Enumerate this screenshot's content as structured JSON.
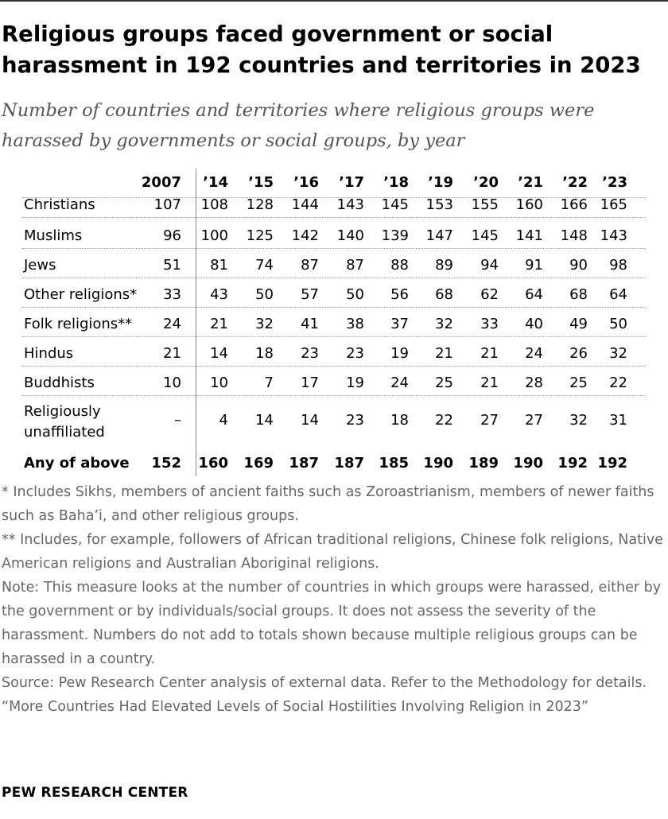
{
  "header": {
    "title": "Religious groups faced government or social harassment in 192 countries and territories in 2023",
    "subtitle": "Number of countries and territories where religious groups were harassed by governments or social groups, by year"
  },
  "chart_data": {
    "type": "table",
    "columns": [
      "2007",
      "’14",
      "’15",
      "’16",
      "’17",
      "’18",
      "’19",
      "’20",
      "’21",
      "’22",
      "’23"
    ],
    "rows": [
      {
        "label": "Christians",
        "values": [
          "107",
          "108",
          "128",
          "144",
          "143",
          "145",
          "153",
          "155",
          "160",
          "166",
          "165"
        ]
      },
      {
        "label": "Muslims",
        "values": [
          "96",
          "100",
          "125",
          "142",
          "140",
          "139",
          "147",
          "145",
          "141",
          "148",
          "143"
        ]
      },
      {
        "label": "Jews",
        "values": [
          "51",
          "81",
          "74",
          "87",
          "87",
          "88",
          "89",
          "94",
          "91",
          "90",
          "98"
        ]
      },
      {
        "label": "Other religions*",
        "values": [
          "33",
          "43",
          "50",
          "57",
          "50",
          "56",
          "68",
          "62",
          "64",
          "68",
          "64"
        ]
      },
      {
        "label": "Folk religions**",
        "values": [
          "24",
          "21",
          "32",
          "41",
          "38",
          "37",
          "32",
          "33",
          "40",
          "49",
          "50"
        ]
      },
      {
        "label": "Hindus",
        "values": [
          "21",
          "14",
          "18",
          "23",
          "23",
          "19",
          "21",
          "21",
          "24",
          "26",
          "32"
        ]
      },
      {
        "label": "Buddhists",
        "values": [
          "10",
          "10",
          "7",
          "17",
          "19",
          "24",
          "25",
          "21",
          "28",
          "25",
          "22"
        ]
      },
      {
        "label_lines": [
          "Religiously",
          "unaffiliated"
        ],
        "values": [
          "–",
          "4",
          "14",
          "14",
          "23",
          "18",
          "22",
          "27",
          "27",
          "32",
          "31"
        ]
      }
    ],
    "total": {
      "label": "Any of above",
      "values": [
        "152",
        "160",
        "169",
        "187",
        "187",
        "185",
        "190",
        "189",
        "190",
        "192",
        "192"
      ]
    }
  },
  "notes": {
    "note1": "* Includes Sikhs, members of ancient faiths such as Zoroastrianism, members of newer faiths such as Baha’i, and other religious groups.",
    "note2": "** Includes, for example, followers of African traditional religions, Chinese folk religions, Native American religions and Australian Aboriginal religions.",
    "note3": "Note: This measure looks at the number of countries in which groups were harassed, either by the government or by individuals/social groups. It does not assess the severity of the harassment. Numbers do not add to totals shown because multiple religious groups can be harassed in a country.",
    "source": "Source: Pew Research Center analysis of external data. Refer to the Methodology for details.",
    "report": "“More Countries Had Elevated Levels of Social Hostilities Involving Religion in 2023”"
  },
  "footer": {
    "brand": "PEW RESEARCH CENTER"
  }
}
